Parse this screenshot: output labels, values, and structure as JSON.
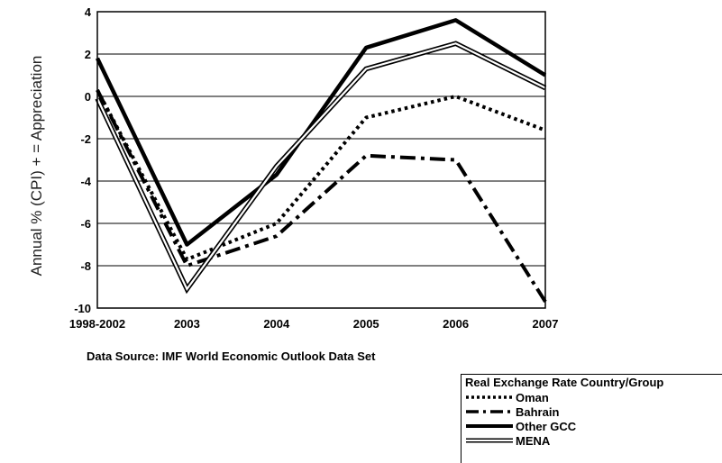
{
  "chart_data": {
    "type": "line",
    "categories": [
      "1998-2002",
      "2003",
      "2004",
      "2005",
      "2006",
      "2007"
    ],
    "ylabel": "Annual % (CPI) + = Appreciation",
    "ylim": [
      -10,
      4
    ],
    "yticks": [
      "4",
      "2",
      "0",
      "-2",
      "-4",
      "-6",
      "-8",
      "-10"
    ],
    "grid": true,
    "series": [
      {
        "name": "Oman",
        "style": "dotted",
        "values": [
          0.3,
          -7.7,
          -6.0,
          -1.0,
          0.0,
          -1.6
        ]
      },
      {
        "name": "Bahrain",
        "style": "dashdot",
        "values": [
          0.3,
          -8.0,
          -6.6,
          -2.8,
          -3.0,
          -9.7
        ]
      },
      {
        "name": "Other GCC",
        "style": "solid",
        "values": [
          1.8,
          -7.0,
          -3.7,
          2.3,
          3.6,
          1.0
        ]
      },
      {
        "name": "MENA",
        "style": "double",
        "values": [
          -0.1,
          -9.1,
          -3.3,
          1.3,
          2.5,
          0.4
        ]
      }
    ],
    "source_note": "Data Source: IMF World Economic Outlook Data Set",
    "legend_title": "Real Exchange Rate Country/Group",
    "legend_position": "bottom-right"
  }
}
